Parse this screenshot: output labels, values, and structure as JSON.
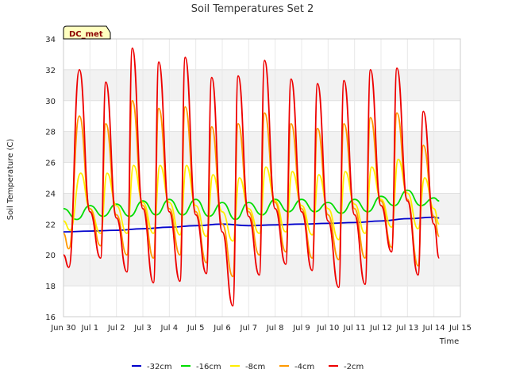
{
  "chart_data": {
    "type": "line",
    "title": "Soil Temperatures Set 2",
    "xlabel": "Time",
    "ylabel": "Soil Temperature (C)",
    "badge": "DC_met",
    "xlim": [
      0,
      15
    ],
    "ylim": [
      16,
      34
    ],
    "x_ticks": [
      {
        "pos": 0,
        "label": "Jun 30"
      },
      {
        "pos": 1,
        "label": "Jul 1"
      },
      {
        "pos": 2,
        "label": "Jul 2"
      },
      {
        "pos": 3,
        "label": "Jul 3"
      },
      {
        "pos": 4,
        "label": "Jul 4"
      },
      {
        "pos": 5,
        "label": "Jul 5"
      },
      {
        "pos": 6,
        "label": "Jul 6"
      },
      {
        "pos": 7,
        "label": "Jul 7"
      },
      {
        "pos": 8,
        "label": "Jul 8"
      },
      {
        "pos": 9,
        "label": "Jul 9"
      },
      {
        "pos": 10,
        "label": "Jul 10"
      },
      {
        "pos": 11,
        "label": "Jul 11"
      },
      {
        "pos": 12,
        "label": "Jul 12"
      },
      {
        "pos": 13,
        "label": "Jul 13"
      },
      {
        "pos": 14,
        "label": "Jul 14"
      },
      {
        "pos": 15,
        "label": "Jul 15"
      }
    ],
    "y_ticks": [
      "16",
      "18",
      "20",
      "22",
      "24",
      "26",
      "28",
      "30",
      "32",
      "34"
    ],
    "grid": true,
    "legend_position": "bottom",
    "series": [
      {
        "name": "-32cm",
        "color": "#0000cc",
        "x": [
          0,
          1,
          2,
          3,
          4,
          5,
          6,
          7,
          8,
          9,
          10,
          11,
          12,
          13,
          14,
          14.2
        ],
        "y": [
          21.5,
          21.55,
          21.6,
          21.7,
          21.8,
          21.9,
          22.0,
          21.9,
          21.95,
          22.0,
          22.05,
          22.1,
          22.2,
          22.35,
          22.45,
          22.4
        ]
      },
      {
        "name": "-16cm",
        "color": "#00dd00",
        "x": [
          0,
          0.5,
          1.0,
          1.5,
          2.0,
          2.5,
          3.0,
          3.5,
          4.0,
          4.5,
          5.0,
          5.5,
          6.0,
          6.5,
          7.0,
          7.5,
          8.0,
          8.5,
          9.0,
          9.5,
          10.0,
          10.5,
          11.0,
          11.5,
          12.0,
          12.5,
          13.0,
          13.5,
          14.0,
          14.2
        ],
        "y": [
          23.0,
          22.3,
          23.2,
          22.5,
          23.3,
          22.5,
          23.5,
          22.6,
          23.6,
          22.6,
          23.6,
          22.5,
          23.4,
          22.3,
          23.4,
          22.6,
          23.6,
          22.8,
          23.6,
          22.8,
          23.4,
          22.7,
          23.6,
          22.8,
          23.8,
          23.2,
          24.2,
          23.2,
          23.7,
          23.5
        ]
      },
      {
        "name": "-8cm",
        "color": "#ffee00",
        "x": [
          0,
          0.25,
          0.65,
          1.0,
          1.4,
          1.65,
          2.0,
          2.4,
          2.65,
          3.0,
          3.4,
          3.65,
          4.0,
          4.4,
          4.65,
          5.0,
          5.4,
          5.65,
          6.0,
          6.4,
          6.65,
          7.0,
          7.4,
          7.65,
          8.0,
          8.4,
          8.65,
          9.0,
          9.4,
          9.65,
          10.0,
          10.4,
          10.65,
          11.0,
          11.4,
          11.65,
          12.0,
          12.4,
          12.65,
          13.0,
          13.4,
          13.65,
          14.0,
          14.2
        ],
        "y": [
          22.2,
          21.6,
          25.3,
          23.0,
          21.4,
          25.3,
          23.2,
          21.4,
          25.8,
          23.4,
          21.4,
          25.8,
          23.4,
          21.3,
          25.8,
          23.2,
          21.2,
          25.2,
          22.8,
          20.9,
          25.0,
          23.0,
          21.4,
          25.7,
          23.5,
          21.5,
          25.4,
          23.2,
          21.3,
          25.2,
          23.0,
          21.0,
          25.4,
          23.3,
          21.4,
          25.7,
          23.6,
          21.8,
          26.2,
          24.0,
          21.7,
          25.0,
          23.0,
          22.0
        ]
      },
      {
        "name": "-4cm",
        "color": "#ff9900",
        "x": [
          0,
          0.2,
          0.6,
          1.0,
          1.4,
          1.6,
          2.0,
          2.4,
          2.6,
          3.0,
          3.4,
          3.6,
          4.0,
          4.4,
          4.6,
          5.0,
          5.4,
          5.6,
          6.0,
          6.4,
          6.6,
          7.0,
          7.4,
          7.6,
          8.0,
          8.4,
          8.6,
          9.0,
          9.4,
          9.6,
          10.0,
          10.4,
          10.6,
          11.0,
          11.4,
          11.6,
          12.0,
          12.4,
          12.6,
          13.0,
          13.4,
          13.6,
          14.0,
          14.2
        ],
        "y": [
          21.4,
          20.4,
          29.0,
          23.0,
          20.6,
          28.5,
          22.6,
          20.0,
          30.0,
          23.2,
          19.8,
          29.5,
          23.0,
          20.0,
          29.6,
          22.8,
          19.5,
          28.3,
          22.0,
          18.6,
          28.5,
          22.8,
          20.0,
          29.2,
          23.4,
          20.2,
          28.5,
          23.0,
          19.8,
          28.2,
          22.6,
          19.7,
          28.5,
          23.0,
          19.8,
          28.9,
          23.5,
          20.5,
          29.2,
          23.6,
          19.3,
          27.1,
          22.5,
          21.2
        ]
      },
      {
        "name": "-2cm",
        "color": "#ee0000",
        "x": [
          0,
          0.2,
          0.6,
          1.0,
          1.4,
          1.6,
          2.0,
          2.4,
          2.6,
          3.0,
          3.4,
          3.6,
          4.0,
          4.4,
          4.6,
          5.0,
          5.4,
          5.6,
          6.0,
          6.4,
          6.6,
          7.0,
          7.4,
          7.6,
          8.0,
          8.4,
          8.6,
          9.0,
          9.4,
          9.6,
          10.0,
          10.4,
          10.6,
          11.0,
          11.4,
          11.6,
          12.0,
          12.4,
          12.6,
          13.0,
          13.4,
          13.6,
          14.0,
          14.2
        ],
        "y": [
          20.0,
          19.2,
          32.0,
          22.8,
          19.8,
          31.2,
          22.4,
          18.9,
          33.4,
          23.0,
          18.2,
          32.5,
          22.8,
          18.3,
          32.8,
          22.6,
          18.8,
          31.5,
          21.5,
          16.7,
          31.6,
          22.5,
          18.7,
          32.6,
          23.0,
          19.4,
          31.4,
          22.8,
          19.0,
          31.1,
          22.2,
          17.9,
          31.3,
          22.6,
          18.1,
          32.0,
          23.2,
          20.2,
          32.1,
          23.5,
          18.7,
          29.3,
          22.0,
          19.8
        ]
      }
    ]
  }
}
